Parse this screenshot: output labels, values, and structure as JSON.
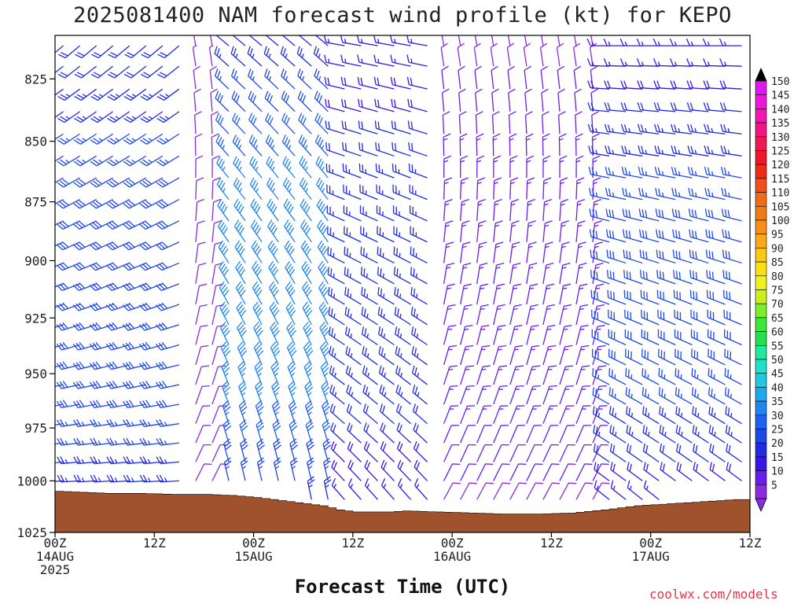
{
  "title": "2025081400 NAM forecast wind profile (kt) for KEPO",
  "credit": "coolwx.com/models",
  "chart_data": {
    "type": "wind_barb_time_height",
    "title": "2025081400 NAM forecast wind profile (kt) for KEPO",
    "xlabel": "Forecast Time (UTC)",
    "ylabel": "",
    "x_range_hours": [
      0,
      84
    ],
    "y_range_hpa": [
      1025,
      808
    ],
    "y_scale": "log",
    "y_ticks": [
      825,
      850,
      875,
      900,
      925,
      950,
      975,
      1000,
      1025
    ],
    "x_ticks": [
      {
        "hour": 0,
        "lines": [
          "00Z",
          "14AUG",
          "2025"
        ]
      },
      {
        "hour": 12,
        "lines": [
          "12Z"
        ]
      },
      {
        "hour": 24,
        "lines": [
          "00Z",
          "15AUG"
        ]
      },
      {
        "hour": 36,
        "lines": [
          "12Z"
        ]
      },
      {
        "hour": 48,
        "lines": [
          "00Z",
          "16AUG"
        ]
      },
      {
        "hour": 60,
        "lines": [
          "12Z"
        ]
      },
      {
        "hour": 72,
        "lines": [
          "00Z",
          "17AUG"
        ]
      },
      {
        "hour": 84,
        "lines": [
          "12Z"
        ]
      }
    ],
    "surface_pressure": [
      {
        "hour": 0,
        "hpa": 1005
      },
      {
        "hour": 3,
        "hpa": 1005.5
      },
      {
        "hour": 6,
        "hpa": 1006
      },
      {
        "hour": 10,
        "hpa": 1006
      },
      {
        "hour": 14,
        "hpa": 1006.5
      },
      {
        "hour": 18,
        "hpa": 1006.5
      },
      {
        "hour": 21,
        "hpa": 1007
      },
      {
        "hour": 24,
        "hpa": 1008
      },
      {
        "hour": 26,
        "hpa": 1009
      },
      {
        "hour": 28,
        "hpa": 1010
      },
      {
        "hour": 30,
        "hpa": 1011
      },
      {
        "hour": 32,
        "hpa": 1012
      },
      {
        "hour": 34,
        "hpa": 1014
      },
      {
        "hour": 36,
        "hpa": 1015
      },
      {
        "hour": 40,
        "hpa": 1015
      },
      {
        "hour": 42,
        "hpa": 1014.5
      },
      {
        "hour": 46,
        "hpa": 1015
      },
      {
        "hour": 50,
        "hpa": 1015.5
      },
      {
        "hour": 54,
        "hpa": 1016
      },
      {
        "hour": 58,
        "hpa": 1016
      },
      {
        "hour": 62,
        "hpa": 1015.5
      },
      {
        "hour": 66,
        "hpa": 1014
      },
      {
        "hour": 70,
        "hpa": 1012
      },
      {
        "hour": 74,
        "hpa": 1011
      },
      {
        "hour": 78,
        "hpa": 1010
      },
      {
        "hour": 82,
        "hpa": 1009
      },
      {
        "hour": 84,
        "hpa": 1009
      }
    ],
    "barb_spacing": {
      "hours": 2,
      "levels_hpa": [
        812,
        820,
        829,
        838,
        847,
        856,
        865,
        874,
        883,
        892,
        901,
        910,
        919,
        928,
        937,
        946,
        955,
        964,
        973,
        982,
        991,
        1000,
        1009,
        1018
      ]
    },
    "wind_regimes": [
      {
        "hours": [
          0,
          16
        ],
        "direction_deg": 250,
        "speed_kt": [
          15,
          30
        ]
      },
      {
        "hours": [
          17,
          20
        ],
        "direction_deg": 10,
        "speed_kt": [
          5,
          10
        ]
      },
      {
        "hours": [
          20,
          34
        ],
        "direction_deg": 330,
        "speed_kt": [
          10,
          40
        ]
      },
      {
        "hours": [
          34,
          46
        ],
        "direction_deg": 300,
        "speed_kt": [
          10,
          25
        ]
      },
      {
        "hours": [
          46,
          66
        ],
        "direction_deg": 10,
        "speed_kt": [
          5,
          15
        ]
      },
      {
        "hours": [
          66,
          84
        ],
        "direction_deg": 290,
        "speed_kt": [
          5,
          30
        ]
      }
    ],
    "colorbar": {
      "labels": [
        5,
        10,
        15,
        20,
        25,
        30,
        35,
        40,
        45,
        50,
        55,
        60,
        65,
        70,
        75,
        80,
        85,
        90,
        95,
        100,
        105,
        110,
        115,
        120,
        125,
        130,
        135,
        140,
        145,
        150
      ],
      "colors": [
        "#8a2be2",
        "#6a1cf0",
        "#3a14e8",
        "#1f2ce0",
        "#1f48e6",
        "#2060f0",
        "#1f86f0",
        "#1fa8ec",
        "#1fc8e0",
        "#1fe0c8",
        "#1fe8a0",
        "#22e050",
        "#3ce83a",
        "#7cef2a",
        "#c8f020",
        "#f0f020",
        "#f8e018",
        "#f8c818",
        "#f8a818",
        "#f89018",
        "#f07c18",
        "#f06a18",
        "#f05018",
        "#f02a18",
        "#f01828",
        "#f01850",
        "#f01880",
        "#f018b0",
        "#f018d8",
        "#e018f0"
      ],
      "top_arrow_color": "#000000",
      "bottom_arrow_color": "#8a2be2"
    }
  }
}
